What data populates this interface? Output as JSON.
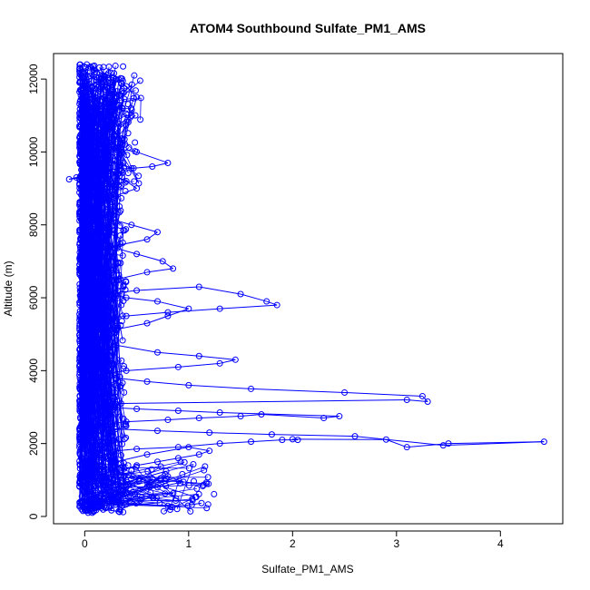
{
  "chart_data": {
    "type": "scatter",
    "title": "ATOM4 Southbound Sulfate_PM1_AMS",
    "xlabel": "Sulfate_PM1_AMS",
    "ylabel": "Altitude (m)",
    "xlim": [
      -0.3,
      4.6
    ],
    "ylim": [
      -200,
      12700
    ],
    "x_ticks": [
      "0",
      "1",
      "2",
      "3",
      "4"
    ],
    "x_tick_values": [
      0,
      1,
      2,
      3,
      4
    ],
    "y_ticks": [
      "0",
      "2000",
      "4000",
      "6000",
      "8000",
      "10000",
      "12000"
    ],
    "y_tick_values": [
      0,
      2000,
      4000,
      6000,
      8000,
      10000,
      12000
    ],
    "grid": false,
    "legend": "none",
    "marker": "open-circle",
    "line_connected": true,
    "color": "#0000ff",
    "series": [
      {
        "x": [
          0.02,
          0.05,
          0.03,
          0.06,
          0.08,
          0.1,
          0.04,
          0.12,
          0.2,
          0.35,
          0.5,
          0.7,
          0.9,
          1.1,
          1.2,
          1.0,
          0.6,
          0.3,
          0.15,
          0.08,
          0.05,
          0.1,
          0.2,
          0.4,
          0.6,
          0.8,
          0.95,
          0.7,
          0.4,
          0.2,
          0.1,
          0.3,
          0.5,
          0.9,
          1.3,
          1.6,
          1.9,
          2.05,
          2.0,
          2.9,
          3.1,
          3.5,
          4.42,
          3.45,
          2.6,
          1.8,
          1.2,
          0.7,
          0.3,
          0.15,
          0.4,
          0.8,
          1.1,
          1.5,
          1.7,
          2.3,
          2.45,
          1.3,
          0.9,
          0.5,
          0.2,
          0.35,
          3.1,
          3.3,
          3.25,
          2.5,
          1.6,
          1.0,
          0.6,
          0.3,
          0.15,
          0.4,
          0.9,
          1.3,
          1.45,
          1.1,
          0.7,
          0.3,
          0.12,
          0.25,
          0.6,
          0.8,
          1.0,
          0.7,
          0.4,
          0.2,
          0.5,
          1.1,
          1.5,
          1.75,
          1.85,
          1.3,
          0.8,
          0.4,
          0.15,
          0.3,
          0.6,
          0.85,
          0.75,
          0.5,
          0.25,
          0.6,
          0.7,
          0.45,
          0.2,
          0.1,
          0.3,
          0.5,
          0.4,
          0.25,
          -0.15,
          -0.08,
          0.05,
          0.45,
          0.65,
          0.8,
          0.5,
          0.3,
          0.2,
          0.45,
          0.5,
          0.4,
          0.3,
          0.05,
          0.08,
          0.1,
          0.02
        ],
        "y": [
          200,
          220,
          300,
          400,
          520,
          650,
          800,
          950,
          1100,
          1250,
          1400,
          1500,
          1600,
          1700,
          1800,
          1900,
          1700,
          1500,
          1300,
          1100,
          180,
          400,
          600,
          800,
          950,
          1100,
          950,
          800,
          650,
          500,
          300,
          1800,
          1850,
          1900,
          2000,
          2050,
          2100,
          2100,
          2120,
          2110,
          1900,
          2000,
          2050,
          1950,
          2200,
          2250,
          2300,
          2350,
          2400,
          2500,
          2600,
          2650,
          2700,
          2750,
          2800,
          2700,
          2750,
          2850,
          2900,
          2950,
          3000,
          3100,
          3200,
          3150,
          3300,
          3400,
          3500,
          3600,
          3700,
          3800,
          3900,
          4000,
          4100,
          4200,
          4300,
          4400,
          4500,
          4700,
          4900,
          5100,
          5300,
          5500,
          5700,
          5900,
          6000,
          6100,
          6200,
          6300,
          6100,
          5900,
          5800,
          5700,
          5600,
          5500,
          5400,
          6500,
          6700,
          6800,
          7000,
          7200,
          7400,
          7600,
          7800,
          8000,
          8200,
          8500,
          8800,
          9000,
          9200,
          9400,
          9250,
          9300,
          9500,
          9550,
          9600,
          9700,
          10000,
          10100,
          10500,
          11000,
          11500,
          11800,
          12000,
          12300,
          12350,
          12200,
          12400
        ]
      }
    ],
    "cloud_description_bands": [
      {
        "y_range": [
          100,
          12400
        ],
        "x_range": [
          -0.05,
          0.4
        ]
      },
      {
        "y_range": [
          100,
          1500
        ],
        "x_range": [
          0.0,
          1.25
        ]
      },
      {
        "y_range": [
          9000,
          12100
        ],
        "x_range": [
          0.0,
          0.55
        ]
      }
    ]
  }
}
